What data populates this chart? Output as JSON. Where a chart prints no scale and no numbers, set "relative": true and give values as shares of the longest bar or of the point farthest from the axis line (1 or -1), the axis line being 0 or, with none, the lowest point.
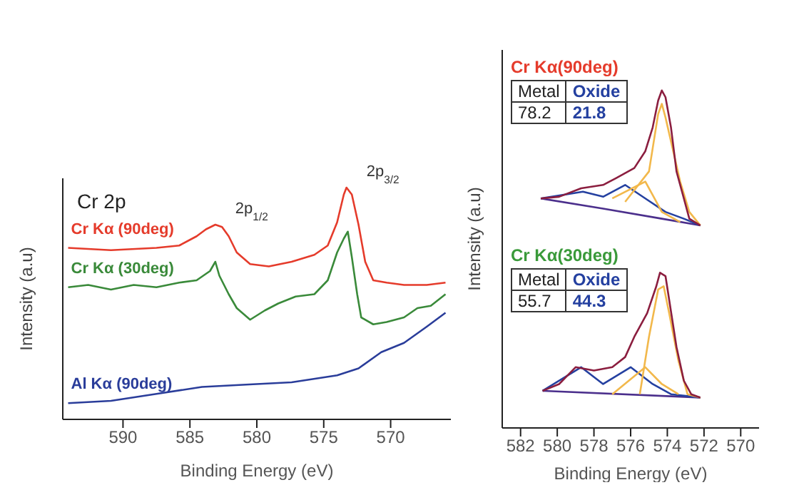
{
  "chart_data": [
    {
      "type": "line",
      "relative": true,
      "xlabel": "Binding Energy (eV)",
      "ylabel": "Intensity (a.u)",
      "xlim": [
        594.5,
        565.5
      ],
      "xticks": [
        590,
        585,
        580,
        575,
        570
      ],
      "annotations": [
        "Cr 2p",
        {
          "text": "2p$_{1/2}$",
          "x": 583.1,
          "y": 0.84
        },
        {
          "text": "2p$_{3/2}$",
          "x": 573.3,
          "y": 1
        }
      ],
      "series": [
        {
          "name": "Cr Kα (90deg)",
          "color": "#e53b2b",
          "x": [
            594.1,
            590.9,
            587.5,
            585.8,
            584.5,
            583.8,
            583.1,
            582.6,
            582.1,
            581.5,
            580.5,
            579.1,
            577.4,
            575.7,
            574.7,
            574.0,
            573.5,
            573.3,
            572.9,
            572.4,
            571.9,
            571.3,
            570.3,
            569.0,
            567.3,
            565.9
          ],
          "values": [
            0.74,
            0.73,
            0.74,
            0.75,
            0.79,
            0.82,
            0.84,
            0.83,
            0.79,
            0.72,
            0.67,
            0.66,
            0.68,
            0.71,
            0.75,
            0.85,
            0.97,
            1,
            0.97,
            0.84,
            0.68,
            0.6,
            0.59,
            0.58,
            0.58,
            0.59
          ]
        },
        {
          "name": "Cr Kα (30deg)",
          "color": "#3a8a3a",
          "x": [
            594.1,
            592.6,
            590.9,
            589.2,
            587.5,
            585.8,
            584.5,
            583.5,
            583.1,
            582.8,
            582.1,
            581.5,
            580.5,
            579.4,
            578.4,
            577.1,
            575.7,
            574.7,
            574.0,
            573.5,
            573.2,
            572.9,
            572.5,
            572.2,
            571.3,
            570.3,
            569.0,
            568.0,
            567.0,
            565.9
          ],
          "values": [
            0.57,
            0.58,
            0.56,
            0.58,
            0.57,
            0.59,
            0.6,
            0.64,
            0.68,
            0.62,
            0.54,
            0.48,
            0.43,
            0.47,
            0.5,
            0.53,
            0.54,
            0.6,
            0.72,
            0.78,
            0.81,
            0.7,
            0.54,
            0.44,
            0.41,
            0.42,
            0.44,
            0.48,
            0.49,
            0.54
          ]
        },
        {
          "name": "Al Kα (90deg)",
          "color": "#2a3d9a",
          "x": [
            594.1,
            590.9,
            587.5,
            584.1,
            580.8,
            577.4,
            574.0,
            572.4,
            570.7,
            569.0,
            567.3,
            565.9
          ],
          "values": [
            0.07,
            0.08,
            0.11,
            0.14,
            0.15,
            0.16,
            0.19,
            0.22,
            0.29,
            0.33,
            0.4,
            0.46
          ]
        }
      ]
    },
    {
      "type": "line",
      "relative": true,
      "xlabel": "Binding Energy (eV)",
      "ylabel": "Intensity (a.u)",
      "xlim": [
        583,
        569
      ],
      "xticks": [
        582,
        580,
        578,
        576,
        574,
        572,
        570
      ],
      "annotations": [
        "Cr Kα(90deg)",
        "Metal",
        "Oxide",
        "78.2",
        "21.8",
        "Cr Kα(30deg)",
        "Metal",
        "Oxide",
        "55.7",
        "44.3"
      ],
      "series": [
        {
          "color": "#4b2f8c",
          "x": [
            580.9,
            577.5,
            574.3,
            572.2
          ],
          "values": [
            0.68,
            0.65,
            0.62,
            0.6
          ]
        },
        {
          "color": "#2440a0",
          "x": [
            580.9,
            578.6,
            577.5,
            576.3,
            575.2,
            574.1,
            573.1,
            572.2
          ],
          "values": [
            0.68,
            0.7,
            0.685,
            0.72,
            0.68,
            0.64,
            0.62,
            0.6
          ]
        },
        {
          "color": "#f2b84b",
          "x": [
            576.3,
            575.0,
            574.5,
            574.3,
            574.1,
            573.3,
            572.8,
            572.2
          ],
          "values": [
            0.67,
            0.76,
            0.93,
            0.96,
            0.92,
            0.73,
            0.64,
            0.6
          ]
        },
        {
          "color": "#f2b84b",
          "x": [
            577.0,
            575.2,
            574.8,
            574.3,
            573.3
          ],
          "values": [
            0.68,
            0.73,
            0.69,
            0.64,
            0.61
          ]
        },
        {
          "color": "#8b1e3f",
          "x": [
            580.9,
            579.9,
            578.7,
            577.5,
            576.8,
            575.8,
            575.2,
            574.8,
            574.5,
            574.3,
            574.1,
            573.8,
            573.5,
            573.1,
            572.8,
            572.2
          ],
          "values": [
            0.68,
            0.685,
            0.71,
            0.72,
            0.74,
            0.77,
            0.82,
            0.89,
            0.97,
            1,
            0.98,
            0.89,
            0.76,
            0.68,
            0.62,
            0.6
          ]
        },
        {
          "color": "#4b2f8c",
          "x": [
            580.8,
            572.2
          ],
          "values": [
            0.11,
            0.09
          ]
        },
        {
          "color": "#2440a0",
          "x": [
            580.8,
            578.7,
            577.5,
            576.0,
            574.8,
            573.8,
            572.2
          ],
          "values": [
            0.11,
            0.18,
            0.13,
            0.18,
            0.13,
            0.1,
            0.09
          ]
        },
        {
          "color": "#f2b84b",
          "x": [
            575.5,
            575.0,
            574.5,
            574.2,
            573.9,
            573.4,
            572.9,
            572.2
          ],
          "values": [
            0.1,
            0.27,
            0.41,
            0.42,
            0.34,
            0.2,
            0.1,
            0.09
          ]
        },
        {
          "color": "#f2b84b",
          "x": [
            577.0,
            575.2,
            574.3,
            573.4
          ],
          "values": [
            0.1,
            0.18,
            0.13,
            0.1
          ]
        },
        {
          "color": "#8b1e3f",
          "x": [
            580.8,
            579.9,
            579.0,
            578.0,
            577.0,
            576.3,
            575.8,
            575.1,
            574.6,
            574.4,
            574.1,
            573.9,
            573.5,
            573.1,
            572.7,
            572.2
          ],
          "values": [
            0.11,
            0.13,
            0.18,
            0.17,
            0.18,
            0.21,
            0.27,
            0.34,
            0.42,
            0.46,
            0.45,
            0.38,
            0.24,
            0.14,
            0.1,
            0.09
          ]
        }
      ]
    }
  ]
}
